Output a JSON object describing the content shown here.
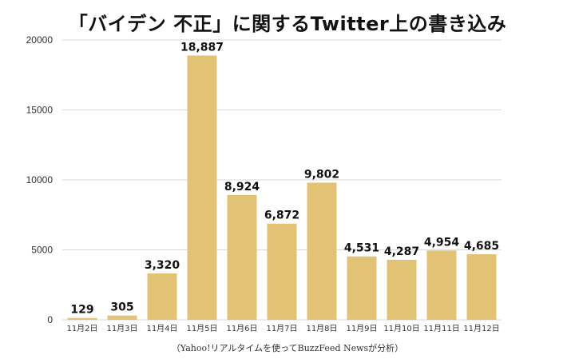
{
  "chart_data": {
    "type": "bar",
    "title": "「バイデン 不正」に関するTwitter上の書き込み",
    "note": "（Yahoo!リアルタイムを使ってBuzzFeed Newsが分析）",
    "categories": [
      "11月2日",
      "11月3日",
      "11月4日",
      "11月5日",
      "11月6日",
      "11月7日",
      "11月8日",
      "11月9日",
      "11月10日",
      "11月11日",
      "11月12日"
    ],
    "values": [
      129,
      305,
      3320,
      18887,
      8924,
      6872,
      9802,
      4531,
      4287,
      4954,
      4685
    ],
    "value_labels": [
      "129",
      "305",
      "3,320",
      "18,887",
      "8,924",
      "6,872",
      "9,802",
      "4,531",
      "4,287",
      "4,954",
      "4,685"
    ],
    "ylim": [
      0,
      20000
    ],
    "yticks": [
      0,
      5000,
      10000,
      15000,
      20000
    ],
    "ytick_labels": [
      "0",
      "5000",
      "10000",
      "15000",
      "20000"
    ],
    "grid": true,
    "legend": "none",
    "bar_color": "#E2C275",
    "grid_color": "#d9d9d9"
  }
}
